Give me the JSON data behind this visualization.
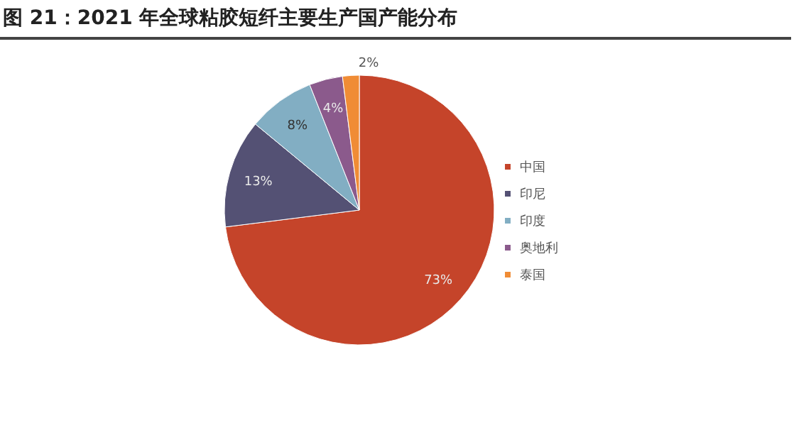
{
  "chart_data": {
    "type": "pie",
    "title": "图 21：2021 年全球粘胶短纤主要生产国产能分布",
    "categories": [
      "中国",
      "印尼",
      "印度",
      "奥地利",
      "泰国"
    ],
    "values": [
      73,
      13,
      8,
      4,
      2
    ],
    "colors": [
      "#c5442a",
      "#545174",
      "#82aec3",
      "#8b5a8c",
      "#f08c35"
    ],
    "value_labels": [
      "73%",
      "13%",
      "8%",
      "4%",
      "2%"
    ],
    "legend": "right"
  }
}
